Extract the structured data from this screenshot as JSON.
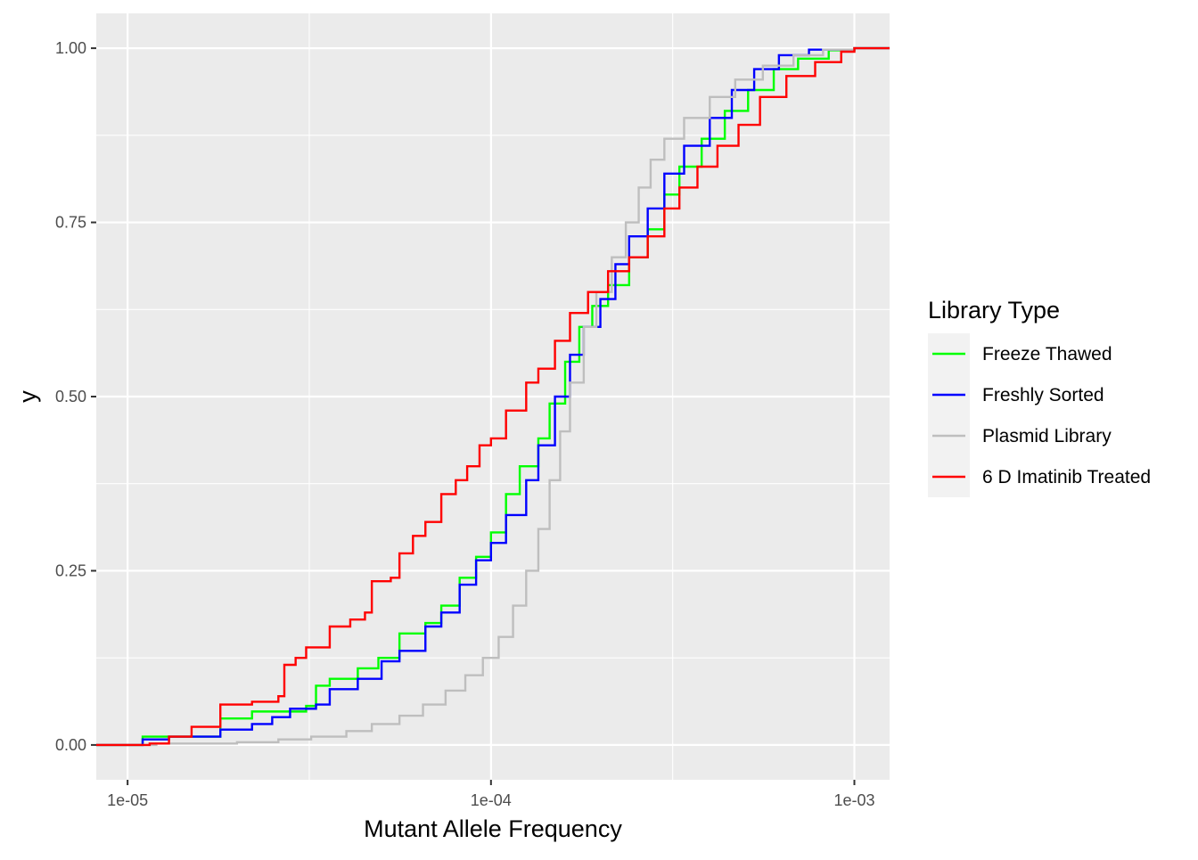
{
  "chart_data": {
    "type": "line",
    "subtype": "ecdf-step",
    "title": "",
    "xlabel": "Mutant Allele Frequency",
    "ylabel": "y",
    "xscale": "log10",
    "xlim": [
      8.2e-06,
      0.00125
    ],
    "ylim": [
      -0.05,
      1.05
    ],
    "x_ticks": [
      1e-05,
      0.0001,
      0.001
    ],
    "x_tick_labels": [
      "1e-05",
      "1e-04",
      "1e-03"
    ],
    "y_ticks": [
      0,
      0.25,
      0.5,
      0.75,
      1.0
    ],
    "y_tick_labels": [
      "0.00",
      "0.25",
      "0.50",
      "0.75",
      "1.00"
    ],
    "grid": true,
    "legend": {
      "title": "Library Type",
      "position": "right"
    },
    "series": [
      {
        "name": "Freeze Thawed",
        "color": "#00FF00",
        "points": [
          [
            8.2e-06,
            0
          ],
          [
            1.1e-05,
            0.012
          ],
          [
            1.8e-05,
            0.038
          ],
          [
            2.2e-05,
            0.048
          ],
          [
            3.1e-05,
            0.056
          ],
          [
            3.3e-05,
            0.085
          ],
          [
            3.6e-05,
            0.095
          ],
          [
            4.3e-05,
            0.11
          ],
          [
            4.9e-05,
            0.125
          ],
          [
            5.6e-05,
            0.16
          ],
          [
            6.6e-05,
            0.175
          ],
          [
            7.3e-05,
            0.2
          ],
          [
            8.2e-05,
            0.24
          ],
          [
            9.1e-05,
            0.27
          ],
          [
            0.0001,
            0.305
          ],
          [
            0.00011,
            0.36
          ],
          [
            0.00012,
            0.4
          ],
          [
            0.000135,
            0.44
          ],
          [
            0.000145,
            0.49
          ],
          [
            0.00016,
            0.55
          ],
          [
            0.000175,
            0.6
          ],
          [
            0.00019,
            0.63
          ],
          [
            0.00021,
            0.66
          ],
          [
            0.00024,
            0.7
          ],
          [
            0.00027,
            0.74
          ],
          [
            0.0003,
            0.79
          ],
          [
            0.00033,
            0.83
          ],
          [
            0.00038,
            0.87
          ],
          [
            0.00044,
            0.91
          ],
          [
            0.00051,
            0.94
          ],
          [
            0.0006,
            0.97
          ],
          [
            0.0007,
            0.985
          ],
          [
            0.00085,
            0.997
          ],
          [
            0.001,
            1
          ],
          [
            0.00125,
            1
          ]
        ]
      },
      {
        "name": "Freshly Sorted",
        "color": "#0000FF",
        "points": [
          [
            8.2e-06,
            0
          ],
          [
            1.1e-05,
            0.008
          ],
          [
            1.3e-05,
            0.012
          ],
          [
            1.8e-05,
            0.022
          ],
          [
            2.2e-05,
            0.03
          ],
          [
            2.5e-05,
            0.04
          ],
          [
            2.8e-05,
            0.052
          ],
          [
            3.3e-05,
            0.058
          ],
          [
            3.6e-05,
            0.08
          ],
          [
            4.3e-05,
            0.095
          ],
          [
            5e-05,
            0.12
          ],
          [
            5.6e-05,
            0.135
          ],
          [
            6.6e-05,
            0.17
          ],
          [
            7.3e-05,
            0.19
          ],
          [
            8.2e-05,
            0.23
          ],
          [
            9.1e-05,
            0.265
          ],
          [
            0.0001,
            0.29
          ],
          [
            0.00011,
            0.33
          ],
          [
            0.000125,
            0.38
          ],
          [
            0.000135,
            0.43
          ],
          [
            0.00015,
            0.5
          ],
          [
            0.000165,
            0.56
          ],
          [
            0.00018,
            0.6
          ],
          [
            0.0002,
            0.64
          ],
          [
            0.00022,
            0.69
          ],
          [
            0.00024,
            0.73
          ],
          [
            0.00027,
            0.77
          ],
          [
            0.0003,
            0.82
          ],
          [
            0.00034,
            0.86
          ],
          [
            0.0004,
            0.9
          ],
          [
            0.00046,
            0.94
          ],
          [
            0.00053,
            0.97
          ],
          [
            0.00062,
            0.99
          ],
          [
            0.00075,
            0.998
          ],
          [
            0.001,
            1
          ],
          [
            0.00125,
            1
          ]
        ]
      },
      {
        "name": "Plasmid Library",
        "color": "#BEBEBE",
        "points": [
          [
            8.2e-06,
            0
          ],
          [
            1.2e-05,
            0.002
          ],
          [
            2e-05,
            0.004
          ],
          [
            2.6e-05,
            0.008
          ],
          [
            3.2e-05,
            0.012
          ],
          [
            4e-05,
            0.02
          ],
          [
            4.7e-05,
            0.03
          ],
          [
            5.6e-05,
            0.042
          ],
          [
            6.5e-05,
            0.058
          ],
          [
            7.5e-05,
            0.078
          ],
          [
            8.5e-05,
            0.1
          ],
          [
            9.5e-05,
            0.125
          ],
          [
            0.000105,
            0.155
          ],
          [
            0.000115,
            0.2
          ],
          [
            0.000125,
            0.25
          ],
          [
            0.000135,
            0.31
          ],
          [
            0.000145,
            0.38
          ],
          [
            0.000155,
            0.45
          ],
          [
            0.000165,
            0.52
          ],
          [
            0.00018,
            0.6
          ],
          [
            0.000195,
            0.65
          ],
          [
            0.000215,
            0.7
          ],
          [
            0.000235,
            0.75
          ],
          [
            0.000255,
            0.8
          ],
          [
            0.000275,
            0.84
          ],
          [
            0.0003,
            0.87
          ],
          [
            0.00034,
            0.9
          ],
          [
            0.0004,
            0.93
          ],
          [
            0.00047,
            0.955
          ],
          [
            0.00056,
            0.975
          ],
          [
            0.00068,
            0.99
          ],
          [
            0.00082,
            0.998
          ],
          [
            0.001,
            1
          ],
          [
            0.00125,
            1
          ]
        ]
      },
      {
        "name": "6 D Imatinib Treated",
        "color": "#FF0000",
        "points": [
          [
            8.2e-06,
            0
          ],
          [
            1.15e-05,
            0.002
          ],
          [
            1.3e-05,
            0.012
          ],
          [
            1.5e-05,
            0.026
          ],
          [
            1.8e-05,
            0.058
          ],
          [
            2.2e-05,
            0.062
          ],
          [
            2.6e-05,
            0.07
          ],
          [
            2.7e-05,
            0.115
          ],
          [
            2.9e-05,
            0.125
          ],
          [
            3.1e-05,
            0.14
          ],
          [
            3.6e-05,
            0.17
          ],
          [
            4.1e-05,
            0.18
          ],
          [
            4.5e-05,
            0.19
          ],
          [
            4.7e-05,
            0.235
          ],
          [
            5.3e-05,
            0.24
          ],
          [
            5.6e-05,
            0.275
          ],
          [
            6.1e-05,
            0.3
          ],
          [
            6.6e-05,
            0.32
          ],
          [
            7.3e-05,
            0.36
          ],
          [
            8e-05,
            0.38
          ],
          [
            8.6e-05,
            0.4
          ],
          [
            9.3e-05,
            0.43
          ],
          [
            0.0001,
            0.44
          ],
          [
            0.00011,
            0.48
          ],
          [
            0.000125,
            0.52
          ],
          [
            0.000135,
            0.54
          ],
          [
            0.00015,
            0.58
          ],
          [
            0.000165,
            0.62
          ],
          [
            0.000185,
            0.65
          ],
          [
            0.00021,
            0.68
          ],
          [
            0.00024,
            0.7
          ],
          [
            0.00027,
            0.73
          ],
          [
            0.0003,
            0.77
          ],
          [
            0.00033,
            0.8
          ],
          [
            0.00037,
            0.83
          ],
          [
            0.00042,
            0.86
          ],
          [
            0.00048,
            0.89
          ],
          [
            0.00055,
            0.93
          ],
          [
            0.00065,
            0.96
          ],
          [
            0.00078,
            0.98
          ],
          [
            0.00092,
            0.995
          ],
          [
            0.001,
            1
          ],
          [
            0.00125,
            1
          ]
        ]
      }
    ]
  }
}
